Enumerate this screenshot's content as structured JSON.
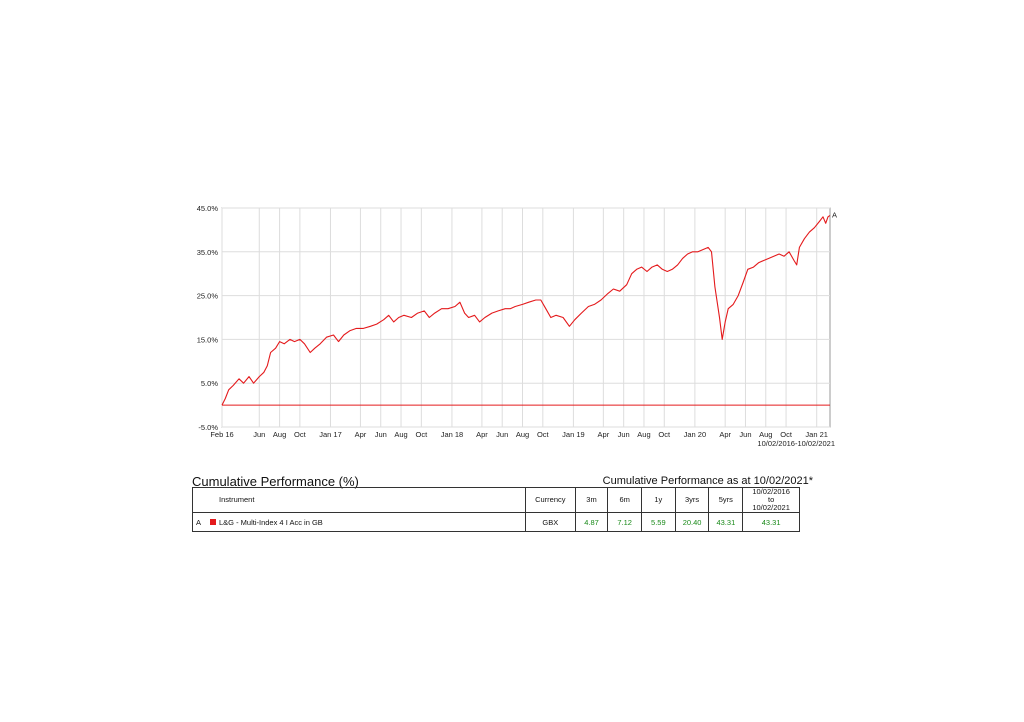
{
  "chart_data": {
    "type": "line",
    "title": "",
    "xlabel": "",
    "ylabel": "",
    "ylim": [
      -5,
      45
    ],
    "xlim": [
      "2016-02-10",
      "2021-02-10"
    ],
    "yticks": [
      "45.0%",
      "35.0%",
      "25.0%",
      "15.0%",
      "5.0%",
      "-5.0%"
    ],
    "ytick_values": [
      45,
      35,
      25,
      15,
      5,
      -5
    ],
    "xticks": [
      {
        "label": "Feb 16",
        "date": "2016-02-10"
      },
      {
        "label": "Jun",
        "date": "2016-06-01"
      },
      {
        "label": "Aug",
        "date": "2016-08-01"
      },
      {
        "label": "Oct",
        "date": "2016-10-01"
      },
      {
        "label": "Jan 17",
        "date": "2017-01-01"
      },
      {
        "label": "Apr",
        "date": "2017-04-01"
      },
      {
        "label": "Jun",
        "date": "2017-06-01"
      },
      {
        "label": "Aug",
        "date": "2017-08-01"
      },
      {
        "label": "Oct",
        "date": "2017-10-01"
      },
      {
        "label": "Jan 18",
        "date": "2018-01-01"
      },
      {
        "label": "Apr",
        "date": "2018-04-01"
      },
      {
        "label": "Jun",
        "date": "2018-06-01"
      },
      {
        "label": "Aug",
        "date": "2018-08-01"
      },
      {
        "label": "Oct",
        "date": "2018-10-01"
      },
      {
        "label": "Jan 19",
        "date": "2019-01-01"
      },
      {
        "label": "Apr",
        "date": "2019-04-01"
      },
      {
        "label": "Jun",
        "date": "2019-06-01"
      },
      {
        "label": "Aug",
        "date": "2019-08-01"
      },
      {
        "label": "Oct",
        "date": "2019-10-01"
      },
      {
        "label": "Jan 20",
        "date": "2020-01-01"
      },
      {
        "label": "Apr",
        "date": "2020-04-01"
      },
      {
        "label": "Jun",
        "date": "2020-06-01"
      },
      {
        "label": "Aug",
        "date": "2020-08-01"
      },
      {
        "label": "Oct",
        "date": "2020-10-01"
      },
      {
        "label": "Jan 21",
        "date": "2021-01-01"
      }
    ],
    "grid": true,
    "baseline": 0,
    "date_range": "10/02/2016-10/02/2021",
    "series": [
      {
        "name": "A",
        "color": "#e41a1c",
        "points": [
          [
            "2016-02-10",
            0
          ],
          [
            "2016-02-20",
            1.5
          ],
          [
            "2016-03-01",
            3.5
          ],
          [
            "2016-03-15",
            4.5
          ],
          [
            "2016-04-01",
            6
          ],
          [
            "2016-04-15",
            5
          ],
          [
            "2016-05-01",
            6.5
          ],
          [
            "2016-05-15",
            5
          ],
          [
            "2016-06-01",
            6.5
          ],
          [
            "2016-06-15",
            7.5
          ],
          [
            "2016-06-25",
            9
          ],
          [
            "2016-07-05",
            12
          ],
          [
            "2016-07-20",
            13
          ],
          [
            "2016-08-01",
            14.5
          ],
          [
            "2016-08-15",
            14
          ],
          [
            "2016-09-01",
            15
          ],
          [
            "2016-09-15",
            14.5
          ],
          [
            "2016-10-01",
            15
          ],
          [
            "2016-10-15",
            14
          ],
          [
            "2016-11-01",
            12
          ],
          [
            "2016-11-15",
            13
          ],
          [
            "2016-12-01",
            14
          ],
          [
            "2016-12-20",
            15.5
          ],
          [
            "2017-01-10",
            16
          ],
          [
            "2017-01-25",
            14.5
          ],
          [
            "2017-02-10",
            16
          ],
          [
            "2017-03-01",
            17
          ],
          [
            "2017-03-20",
            17.5
          ],
          [
            "2017-04-10",
            17.5
          ],
          [
            "2017-05-01",
            18
          ],
          [
            "2017-05-20",
            18.5
          ],
          [
            "2017-06-10",
            19.5
          ],
          [
            "2017-06-25",
            20.5
          ],
          [
            "2017-07-10",
            19
          ],
          [
            "2017-07-25",
            20
          ],
          [
            "2017-08-10",
            20.5
          ],
          [
            "2017-09-01",
            20
          ],
          [
            "2017-09-20",
            21
          ],
          [
            "2017-10-10",
            21.5
          ],
          [
            "2017-10-25",
            20
          ],
          [
            "2017-11-10",
            21
          ],
          [
            "2017-12-01",
            22
          ],
          [
            "2017-12-20",
            22
          ],
          [
            "2018-01-10",
            22.5
          ],
          [
            "2018-01-25",
            23.5
          ],
          [
            "2018-02-08",
            21
          ],
          [
            "2018-02-20",
            20
          ],
          [
            "2018-03-10",
            20.5
          ],
          [
            "2018-03-25",
            19
          ],
          [
            "2018-04-10",
            20
          ],
          [
            "2018-05-01",
            21
          ],
          [
            "2018-05-20",
            21.5
          ],
          [
            "2018-06-10",
            22
          ],
          [
            "2018-06-25",
            22
          ],
          [
            "2018-07-10",
            22.5
          ],
          [
            "2018-08-01",
            23
          ],
          [
            "2018-08-20",
            23.5
          ],
          [
            "2018-09-10",
            24
          ],
          [
            "2018-09-25",
            24
          ],
          [
            "2018-10-10",
            22
          ],
          [
            "2018-10-25",
            20
          ],
          [
            "2018-11-10",
            20.5
          ],
          [
            "2018-12-01",
            20
          ],
          [
            "2018-12-20",
            18
          ],
          [
            "2019-01-05",
            19.5
          ],
          [
            "2019-01-25",
            21
          ],
          [
            "2019-02-15",
            22.5
          ],
          [
            "2019-03-05",
            23
          ],
          [
            "2019-03-25",
            24
          ],
          [
            "2019-04-15",
            25.5
          ],
          [
            "2019-05-01",
            26.5
          ],
          [
            "2019-05-20",
            26
          ],
          [
            "2019-06-10",
            27.5
          ],
          [
            "2019-06-25",
            30
          ],
          [
            "2019-07-10",
            31
          ],
          [
            "2019-07-25",
            31.5
          ],
          [
            "2019-08-10",
            30.5
          ],
          [
            "2019-08-25",
            31.5
          ],
          [
            "2019-09-10",
            32
          ],
          [
            "2019-09-25",
            31
          ],
          [
            "2019-10-10",
            30.5
          ],
          [
            "2019-10-25",
            31
          ],
          [
            "2019-11-10",
            32
          ],
          [
            "2019-11-25",
            33.5
          ],
          [
            "2019-12-10",
            34.5
          ],
          [
            "2019-12-25",
            35
          ],
          [
            "2020-01-10",
            35
          ],
          [
            "2020-01-25",
            35.5
          ],
          [
            "2020-02-10",
            36
          ],
          [
            "2020-02-20",
            35
          ],
          [
            "2020-03-01",
            27
          ],
          [
            "2020-03-15",
            20
          ],
          [
            "2020-03-23",
            15
          ],
          [
            "2020-04-01",
            19
          ],
          [
            "2020-04-10",
            22
          ],
          [
            "2020-04-25",
            23
          ],
          [
            "2020-05-10",
            25
          ],
          [
            "2020-05-25",
            28
          ],
          [
            "2020-06-08",
            31
          ],
          [
            "2020-06-25",
            31.5
          ],
          [
            "2020-07-10",
            32.5
          ],
          [
            "2020-07-25",
            33
          ],
          [
            "2020-08-10",
            33.5
          ],
          [
            "2020-08-25",
            34
          ],
          [
            "2020-09-10",
            34.5
          ],
          [
            "2020-09-25",
            34
          ],
          [
            "2020-10-10",
            35
          ],
          [
            "2020-10-25",
            33
          ],
          [
            "2020-11-02",
            32
          ],
          [
            "2020-11-10",
            36
          ],
          [
            "2020-11-25",
            38
          ],
          [
            "2020-12-10",
            39.5
          ],
          [
            "2020-12-25",
            40.5
          ],
          [
            "2021-01-10",
            42
          ],
          [
            "2021-01-20",
            43
          ],
          [
            "2021-01-28",
            41.5
          ],
          [
            "2021-02-04",
            43
          ],
          [
            "2021-02-10",
            43.31
          ]
        ]
      }
    ]
  },
  "performance": {
    "title": "Cumulative Performance (%)",
    "as_of": "Cumulative Performance as at 10/02/2021*",
    "headers": {
      "instrument": "Instrument",
      "currency": "Currency",
      "m3": "3m",
      "m6": "6m",
      "y1": "1y",
      "y3": "3yrs",
      "y5": "5yrs",
      "range_line1": "10/02/2016",
      "range_line2": "to",
      "range_line3": "10/02/2021"
    },
    "rows": [
      {
        "label": "A",
        "color": "#e41a1c",
        "name": "L&G - Multi-Index 4 I Acc in GB",
        "currency": "GBX",
        "m3": "4.87",
        "m6": "7.12",
        "y1": "5.59",
        "y3": "20.40",
        "y5": "43.31",
        "range": "43.31"
      }
    ]
  }
}
